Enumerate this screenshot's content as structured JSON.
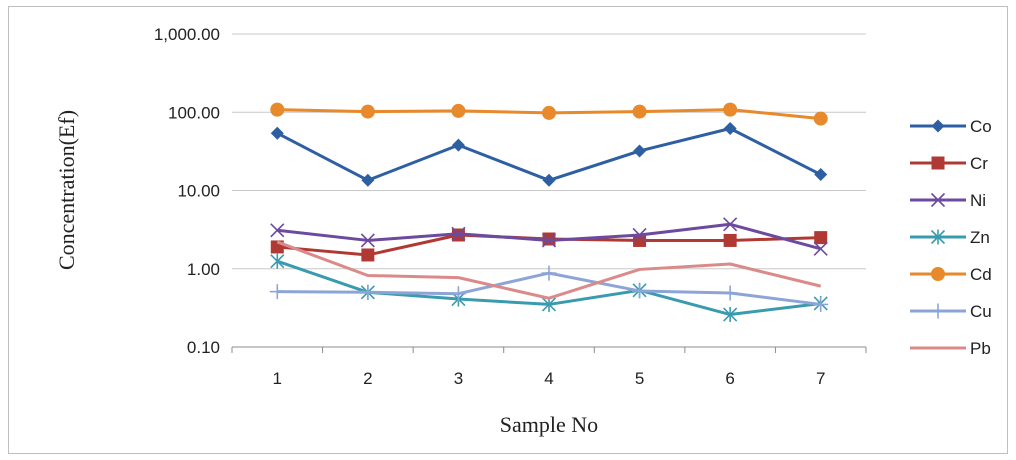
{
  "chart_data": {
    "type": "line",
    "title": "",
    "xlabel": "Sample No",
    "ylabel": "Concentration(Ef)",
    "yscale": "log",
    "ylim": [
      0.1,
      1000
    ],
    "yticks": [
      0.1,
      1,
      10,
      100,
      1000
    ],
    "ytick_labels": [
      "0.10",
      "1.00",
      "10.00",
      "100.00",
      "1,000.00"
    ],
    "categories": [
      "1",
      "2",
      "3",
      "4",
      "5",
      "6",
      "7"
    ],
    "grid": "horizontal",
    "legend_position": "right",
    "series": [
      {
        "name": "Co",
        "color": "#2E5FA3",
        "marker": "diamond",
        "values": [
          54,
          13.5,
          38,
          13.5,
          32,
          62,
          16
        ]
      },
      {
        "name": "Cr",
        "color": "#B03A33",
        "marker": "square",
        "values": [
          1.9,
          1.5,
          2.7,
          2.4,
          2.3,
          2.3,
          2.5
        ]
      },
      {
        "name": "Ni",
        "color": "#6C4A9E",
        "marker": "x",
        "values": [
          3.1,
          2.3,
          2.8,
          2.3,
          2.7,
          3.7,
          1.8
        ]
      },
      {
        "name": "Zn",
        "color": "#3A9BB0",
        "marker": "asterisk",
        "values": [
          1.25,
          0.5,
          0.41,
          0.35,
          0.53,
          0.26,
          0.36
        ]
      },
      {
        "name": "Cd",
        "color": "#E8892B",
        "marker": "circle",
        "values": [
          108,
          102,
          104,
          98,
          102,
          108,
          83
        ]
      },
      {
        "name": "Cu",
        "color": "#8DA5D6",
        "marker": "plus",
        "values": [
          0.51,
          0.5,
          0.48,
          0.88,
          0.52,
          0.49,
          0.35
        ]
      },
      {
        "name": "Pb",
        "color": "#DB8A8A",
        "marker": "none",
        "values": [
          2.2,
          0.82,
          0.77,
          0.42,
          0.98,
          1.15,
          0.6
        ]
      }
    ]
  }
}
